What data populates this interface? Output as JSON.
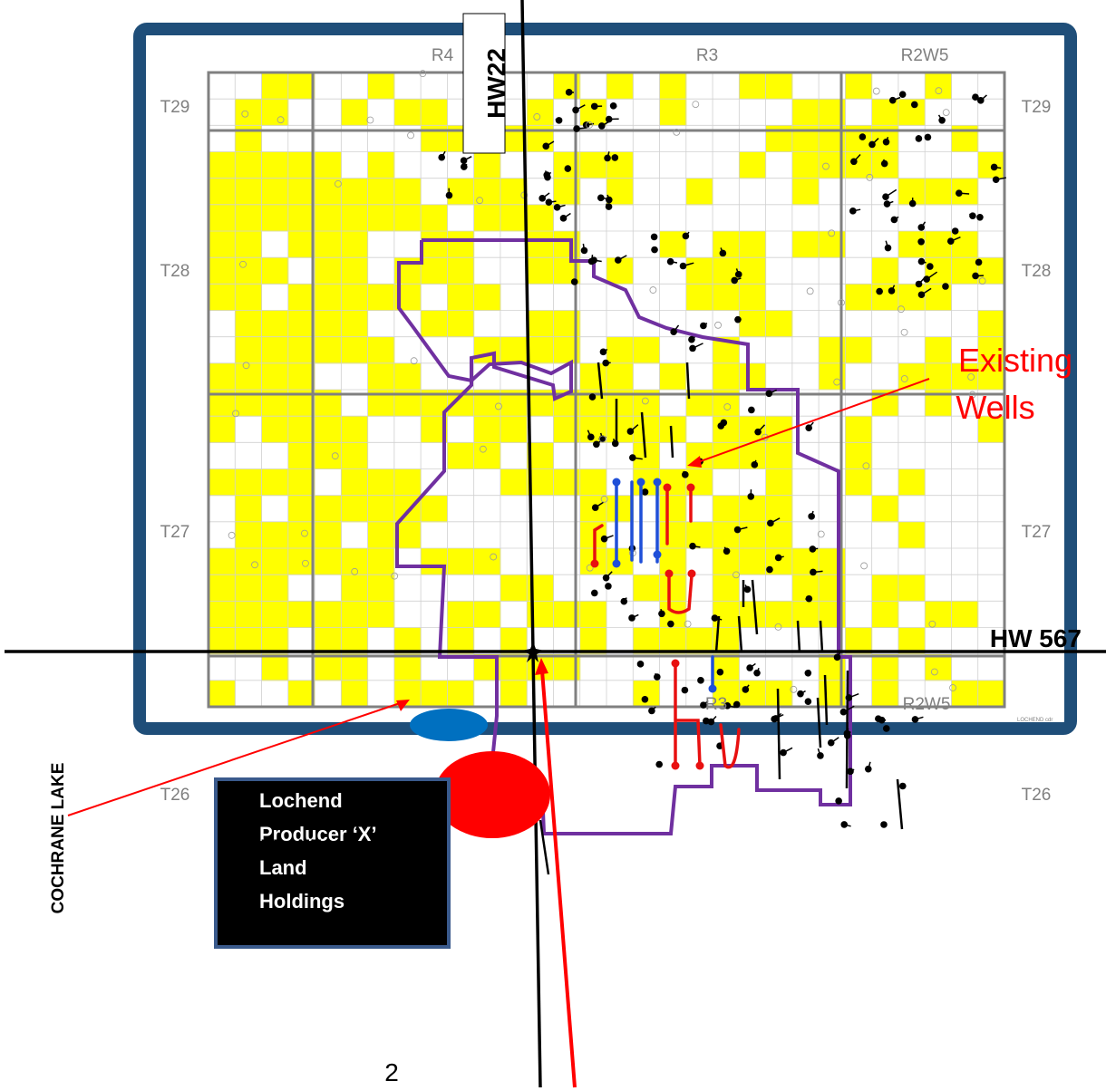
{
  "labels": {
    "range_top": [
      "R4",
      "R3",
      "R2W5"
    ],
    "range_bottom": [
      "R3",
      "R2W5"
    ],
    "townships_left": [
      "T29",
      "T28",
      "T27",
      "T26"
    ],
    "townships_right": [
      "T29",
      "T28",
      "T27",
      "T26"
    ],
    "highway_22": "HW22",
    "highway_567": "HW 567",
    "existing_wells_line1": "Existing",
    "existing_wells_line2": "Wells",
    "legend_box_lines": [
      "Lochend",
      "Producer ‘X’",
      "Land",
      "Holdings"
    ],
    "cochrane_lake": "COCHRANE LAKE",
    "cochrane": "COCHRANE",
    "page_number": "2",
    "map_credit": "LOCHEND cdr"
  },
  "colors": {
    "frame": "#1f4e79",
    "land": "#ffff00",
    "boundary": "#7030a0",
    "annotation": "#ff0000",
    "grid": "#808080",
    "lake_marker": "#0070c0",
    "town_marker": "#ff0000",
    "legend_bg": "#000000",
    "well_black": "#000000",
    "well_blue": "#1f4fd8",
    "well_red": "#e81010"
  },
  "icons": [
    "well-icon",
    "lake-marker-icon",
    "town-marker-icon",
    "arrow-icon"
  ]
}
